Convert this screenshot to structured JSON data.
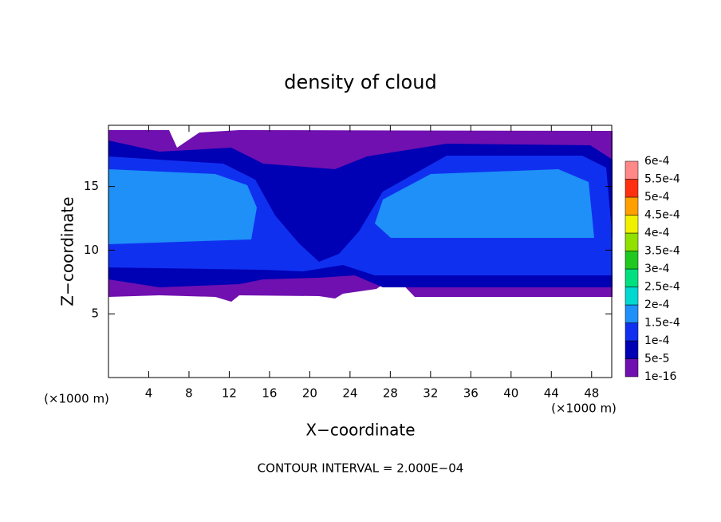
{
  "chart_data": {
    "type": "contour",
    "title": "density of cloud",
    "xlabel": "X−coordinate",
    "ylabel": "Z−coordinate",
    "y_unit": "(×1000 m)",
    "x_unit": "(×1000 m)",
    "contour_interval": "CONTOUR INTERVAL = 2.000E−04",
    "xlim": [
      0,
      50
    ],
    "ylim": [
      0,
      19.8
    ],
    "xticks": [
      4,
      8,
      12,
      16,
      20,
      24,
      28,
      32,
      36,
      40,
      44,
      48
    ],
    "yticks": [
      5,
      10,
      15
    ],
    "colorbar": {
      "levels": [
        {
          "value": 1e-16,
          "label": "1e-16"
        },
        {
          "value": 5e-05,
          "label": "5e-5"
        },
        {
          "value": 0.0001,
          "label": "1e-4"
        },
        {
          "value": 0.00015,
          "label": "1.5e-4"
        },
        {
          "value": 0.0002,
          "label": "2e-4"
        },
        {
          "value": 0.00025,
          "label": "2.5e-4"
        },
        {
          "value": 0.0003,
          "label": "3e-4"
        },
        {
          "value": 0.00035,
          "label": "3.5e-4"
        },
        {
          "value": 0.0004,
          "label": "4e-4"
        },
        {
          "value": 0.00045,
          "label": "4.5e-4"
        },
        {
          "value": 0.0005,
          "label": "5e-4"
        },
        {
          "value": 0.00055,
          "label": "5.5e-4"
        },
        {
          "value": 0.0006,
          "label": "6e-4"
        }
      ],
      "colors": [
        "#7010b0",
        "#0000b4",
        "#1030f0",
        "#1e90f8",
        "#00d8d0",
        "#00e080",
        "#20c820",
        "#90e000",
        "#f0f000",
        "#ffa000",
        "#ff3010",
        "#ff8888"
      ]
    }
  }
}
